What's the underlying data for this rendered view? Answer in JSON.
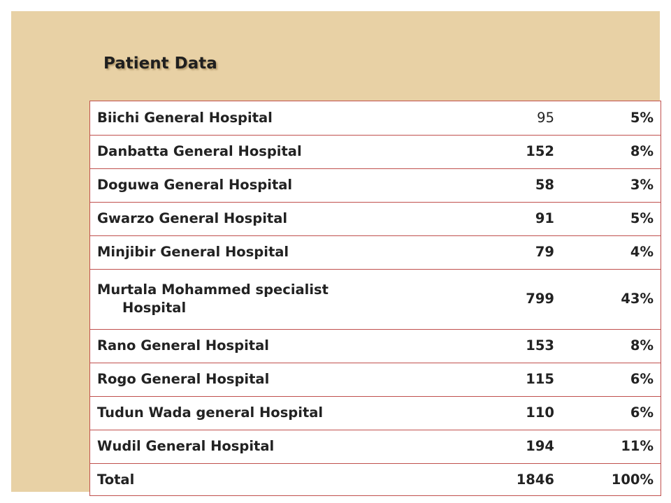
{
  "title": "Patient Data",
  "rows": [
    {
      "name": "Biichi General Hospital",
      "count": "95",
      "pct": "5%"
    },
    {
      "name": "Danbatta General Hospital",
      "count": "152",
      "pct": "8%"
    },
    {
      "name": "Doguwa General Hospital",
      "count": "58",
      "pct": "3%"
    },
    {
      "name": "Gwarzo General Hospital",
      "count": "91",
      "pct": "5%"
    },
    {
      "name": "Minjibir General Hospital",
      "count": "79",
      "pct": "4%"
    },
    {
      "name": "Murtala Mohammed specialist",
      "name_line2": "Hospital",
      "count": "799",
      "pct": "43%"
    },
    {
      "name": "Rano General Hospital",
      "count": "153",
      "pct": "8%"
    },
    {
      "name": "Rogo General Hospital",
      "count": "115",
      "pct": "6%"
    },
    {
      "name": "Tudun Wada general Hospital",
      "count": "110",
      "pct": "6%"
    },
    {
      "name": "Wudil General Hospital",
      "count": "194",
      "pct": "11%"
    },
    {
      "name": "Total",
      "count": "1846",
      "pct": "100%"
    }
  ]
}
